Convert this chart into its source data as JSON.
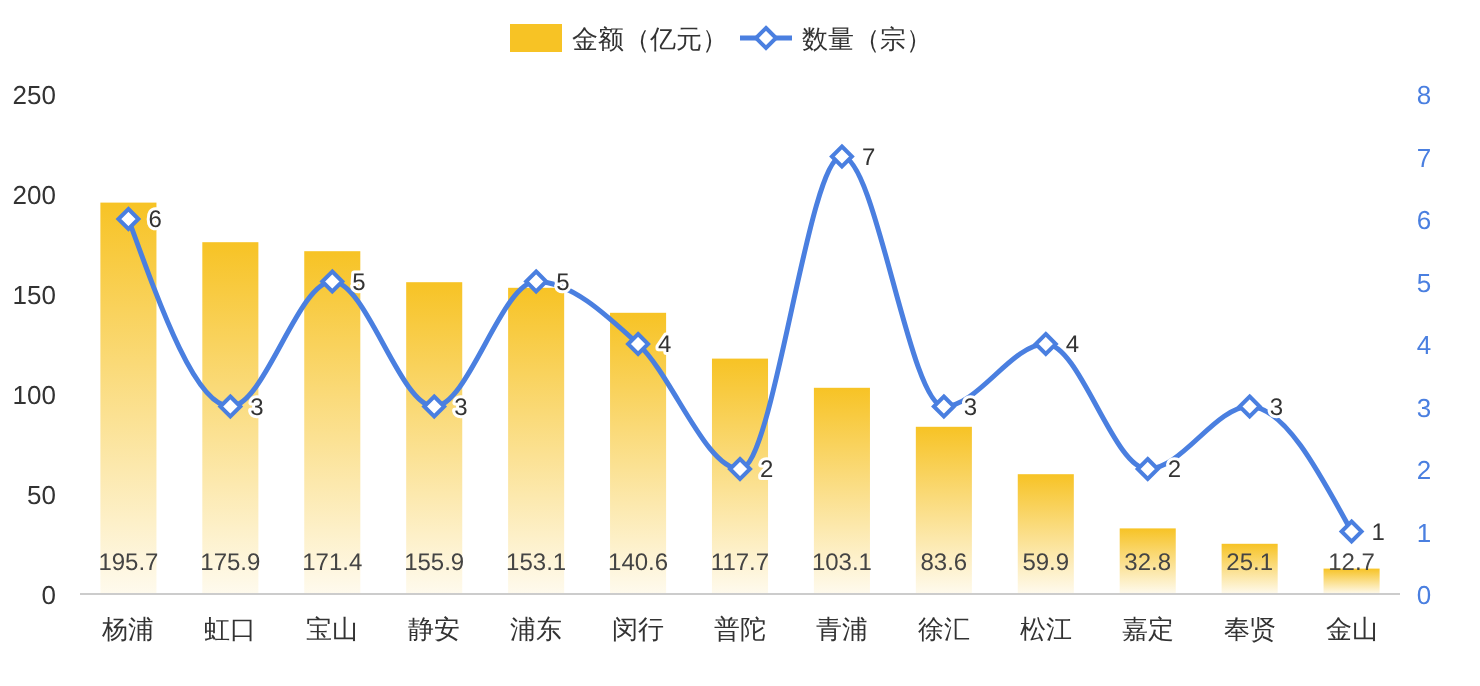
{
  "chart_data": {
    "type": "bar",
    "categories": [
      "杨浦",
      "虹口",
      "宝山",
      "静安",
      "浦东",
      "闵行",
      "普陀",
      "青浦",
      "徐汇",
      "松江",
      "嘉定",
      "奉贤",
      "金山"
    ],
    "series": [
      {
        "name": "金额（亿元）",
        "color": "#f7c325",
        "values": [
          195.7,
          175.9,
          171.4,
          155.9,
          153.1,
          140.6,
          117.7,
          103.1,
          83.6,
          59.9,
          32.8,
          25.1,
          12.7
        ]
      },
      {
        "name": "数量（宗）",
        "type": "line",
        "axis": "y2",
        "color": "#4a7fe0",
        "values": [
          6,
          3,
          5,
          3,
          5,
          4,
          2,
          7,
          3,
          4,
          2,
          3,
          1
        ]
      }
    ],
    "ylim": [
      0,
      250
    ],
    "yticks": [
      0,
      50,
      100,
      150,
      200,
      250
    ],
    "y2lim": [
      0,
      8
    ],
    "y2ticks": [
      0,
      1,
      2,
      3,
      4,
      5,
      6,
      7,
      8
    ],
    "data_labels": true,
    "legend": "top",
    "marker": "diamond",
    "line_style": "solid",
    "grid": false
  }
}
